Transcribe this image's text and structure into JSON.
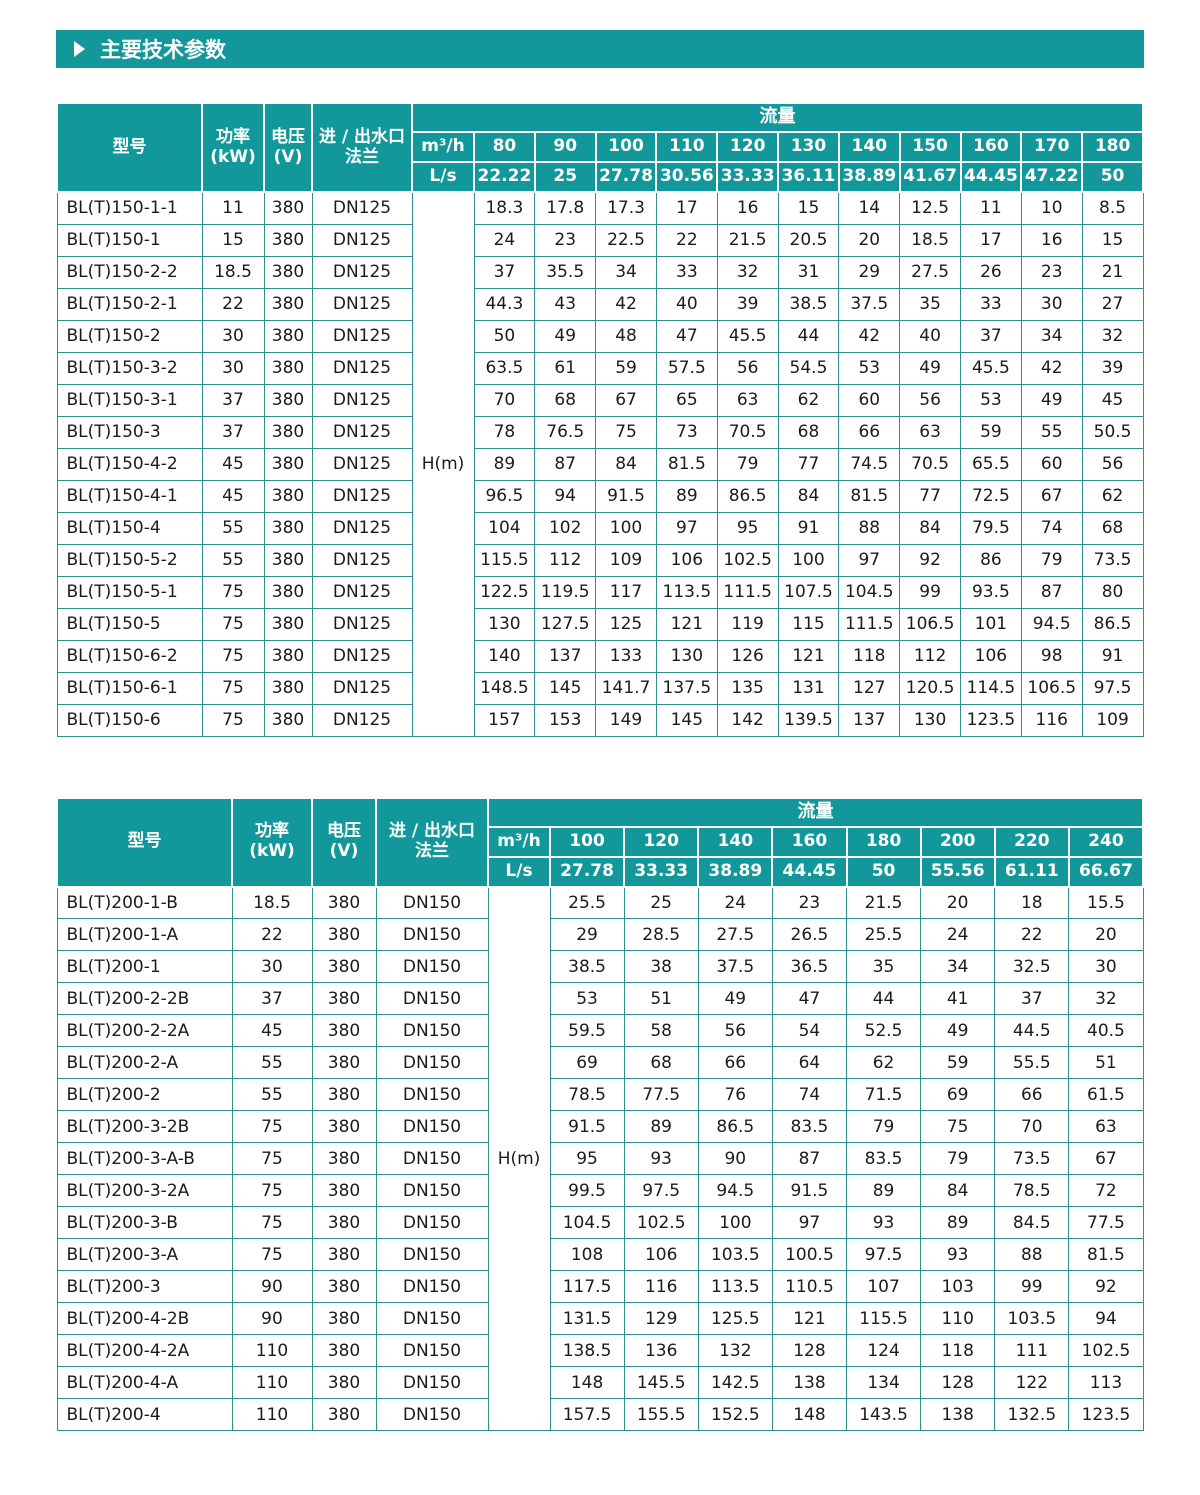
{
  "page": {
    "title": "主要技术参数"
  },
  "table1": {
    "col_model": "型号",
    "col_power": "功率\n(kW)",
    "col_voltage": "电压\n(V)",
    "col_flange": "进 / 出水口\n法兰",
    "flow_label": "流量",
    "unit_m3h": "m³/h",
    "unit_ls": "L/s",
    "head_label": "H(m)",
    "m3h_values": [
      "80",
      "90",
      "100",
      "110",
      "120",
      "130",
      "140",
      "150",
      "160",
      "170",
      "180"
    ],
    "ls_values": [
      "22.22",
      "25",
      "27.78",
      "30.56",
      "33.33",
      "36.11",
      "38.89",
      "41.67",
      "44.45",
      "47.22",
      "50"
    ],
    "rows": [
      {
        "model": "BL(T)150-1-1",
        "power": "11",
        "voltage": "380",
        "flange": "DN125",
        "values": [
          "18.3",
          "17.8",
          "17.3",
          "17",
          "16",
          "15",
          "14",
          "12.5",
          "11",
          "10",
          "8.5"
        ]
      },
      {
        "model": "BL(T)150-1",
        "power": "15",
        "voltage": "380",
        "flange": "DN125",
        "values": [
          "24",
          "23",
          "22.5",
          "22",
          "21.5",
          "20.5",
          "20",
          "18.5",
          "17",
          "16",
          "15"
        ]
      },
      {
        "model": "BL(T)150-2-2",
        "power": "18.5",
        "voltage": "380",
        "flange": "DN125",
        "values": [
          "37",
          "35.5",
          "34",
          "33",
          "32",
          "31",
          "29",
          "27.5",
          "26",
          "23",
          "21"
        ]
      },
      {
        "model": "BL(T)150-2-1",
        "power": "22",
        "voltage": "380",
        "flange": "DN125",
        "values": [
          "44.3",
          "43",
          "42",
          "40",
          "39",
          "38.5",
          "37.5",
          "35",
          "33",
          "30",
          "27"
        ]
      },
      {
        "model": "BL(T)150-2",
        "power": "30",
        "voltage": "380",
        "flange": "DN125",
        "values": [
          "50",
          "49",
          "48",
          "47",
          "45.5",
          "44",
          "42",
          "40",
          "37",
          "34",
          "32"
        ]
      },
      {
        "model": "BL(T)150-3-2",
        "power": "30",
        "voltage": "380",
        "flange": "DN125",
        "values": [
          "63.5",
          "61",
          "59",
          "57.5",
          "56",
          "54.5",
          "53",
          "49",
          "45.5",
          "42",
          "39"
        ]
      },
      {
        "model": "BL(T)150-3-1",
        "power": "37",
        "voltage": "380",
        "flange": "DN125",
        "values": [
          "70",
          "68",
          "67",
          "65",
          "63",
          "62",
          "60",
          "56",
          "53",
          "49",
          "45"
        ]
      },
      {
        "model": "BL(T)150-3",
        "power": "37",
        "voltage": "380",
        "flange": "DN125",
        "values": [
          "78",
          "76.5",
          "75",
          "73",
          "70.5",
          "68",
          "66",
          "63",
          "59",
          "55",
          "50.5"
        ]
      },
      {
        "model": "BL(T)150-4-2",
        "power": "45",
        "voltage": "380",
        "flange": "DN125",
        "values": [
          "89",
          "87",
          "84",
          "81.5",
          "79",
          "77",
          "74.5",
          "70.5",
          "65.5",
          "60",
          "56"
        ]
      },
      {
        "model": "BL(T)150-4-1",
        "power": "45",
        "voltage": "380",
        "flange": "DN125",
        "values": [
          "96.5",
          "94",
          "91.5",
          "89",
          "86.5",
          "84",
          "81.5",
          "77",
          "72.5",
          "67",
          "62"
        ]
      },
      {
        "model": "BL(T)150-4",
        "power": "55",
        "voltage": "380",
        "flange": "DN125",
        "values": [
          "104",
          "102",
          "100",
          "97",
          "95",
          "91",
          "88",
          "84",
          "79.5",
          "74",
          "68"
        ]
      },
      {
        "model": "BL(T)150-5-2",
        "power": "55",
        "voltage": "380",
        "flange": "DN125",
        "values": [
          "115.5",
          "112",
          "109",
          "106",
          "102.5",
          "100",
          "97",
          "92",
          "86",
          "79",
          "73.5"
        ]
      },
      {
        "model": "BL(T)150-5-1",
        "power": "75",
        "voltage": "380",
        "flange": "DN125",
        "values": [
          "122.5",
          "119.5",
          "117",
          "113.5",
          "111.5",
          "107.5",
          "104.5",
          "99",
          "93.5",
          "87",
          "80"
        ]
      },
      {
        "model": "BL(T)150-5",
        "power": "75",
        "voltage": "380",
        "flange": "DN125",
        "values": [
          "130",
          "127.5",
          "125",
          "121",
          "119",
          "115",
          "111.5",
          "106.5",
          "101",
          "94.5",
          "86.5"
        ]
      },
      {
        "model": "BL(T)150-6-2",
        "power": "75",
        "voltage": "380",
        "flange": "DN125",
        "values": [
          "140",
          "137",
          "133",
          "130",
          "126",
          "121",
          "118",
          "112",
          "106",
          "98",
          "91"
        ]
      },
      {
        "model": "BL(T)150-6-1",
        "power": "75",
        "voltage": "380",
        "flange": "DN125",
        "values": [
          "148.5",
          "145",
          "141.7",
          "137.5",
          "135",
          "131",
          "127",
          "120.5",
          "114.5",
          "106.5",
          "97.5"
        ]
      },
      {
        "model": "BL(T)150-6",
        "power": "75",
        "voltage": "380",
        "flange": "DN125",
        "values": [
          "157",
          "153",
          "149",
          "145",
          "142",
          "139.5",
          "137",
          "130",
          "123.5",
          "116",
          "109"
        ]
      }
    ]
  },
  "table2": {
    "col_model": "型号",
    "col_power": "功率\n(kW)",
    "col_voltage": "电压\n(V)",
    "col_flange": "进 / 出水口\n法兰",
    "flow_label": "流量",
    "unit_m3h": "m³/h",
    "unit_ls": "L/s",
    "head_label": "H(m)",
    "m3h_values": [
      "100",
      "120",
      "140",
      "160",
      "180",
      "200",
      "220",
      "240"
    ],
    "ls_values": [
      "27.78",
      "33.33",
      "38.89",
      "44.45",
      "50",
      "55.56",
      "61.11",
      "66.67"
    ],
    "rows": [
      {
        "model": "BL(T)200-1-B",
        "power": "18.5",
        "voltage": "380",
        "flange": "DN150",
        "values": [
          "25.5",
          "25",
          "24",
          "23",
          "21.5",
          "20",
          "18",
          "15.5"
        ]
      },
      {
        "model": "BL(T)200-1-A",
        "power": "22",
        "voltage": "380",
        "flange": "DN150",
        "values": [
          "29",
          "28.5",
          "27.5",
          "26.5",
          "25.5",
          "24",
          "22",
          "20"
        ]
      },
      {
        "model": "BL(T)200-1",
        "power": "30",
        "voltage": "380",
        "flange": "DN150",
        "values": [
          "38.5",
          "38",
          "37.5",
          "36.5",
          "35",
          "34",
          "32.5",
          "30"
        ]
      },
      {
        "model": "BL(T)200-2-2B",
        "power": "37",
        "voltage": "380",
        "flange": "DN150",
        "values": [
          "53",
          "51",
          "49",
          "47",
          "44",
          "41",
          "37",
          "32"
        ]
      },
      {
        "model": "BL(T)200-2-2A",
        "power": "45",
        "voltage": "380",
        "flange": "DN150",
        "values": [
          "59.5",
          "58",
          "56",
          "54",
          "52.5",
          "49",
          "44.5",
          "40.5"
        ]
      },
      {
        "model": "BL(T)200-2-A",
        "power": "55",
        "voltage": "380",
        "flange": "DN150",
        "values": [
          "69",
          "68",
          "66",
          "64",
          "62",
          "59",
          "55.5",
          "51"
        ]
      },
      {
        "model": "BL(T)200-2",
        "power": "55",
        "voltage": "380",
        "flange": "DN150",
        "values": [
          "78.5",
          "77.5",
          "76",
          "74",
          "71.5",
          "69",
          "66",
          "61.5"
        ]
      },
      {
        "model": "BL(T)200-3-2B",
        "power": "75",
        "voltage": "380",
        "flange": "DN150",
        "values": [
          "91.5",
          "89",
          "86.5",
          "83.5",
          "79",
          "75",
          "70",
          "63"
        ]
      },
      {
        "model": "BL(T)200-3-A-B",
        "power": "75",
        "voltage": "380",
        "flange": "DN150",
        "values": [
          "95",
          "93",
          "90",
          "87",
          "83.5",
          "79",
          "73.5",
          "67"
        ]
      },
      {
        "model": "BL(T)200-3-2A",
        "power": "75",
        "voltage": "380",
        "flange": "DN150",
        "values": [
          "99.5",
          "97.5",
          "94.5",
          "91.5",
          "89",
          "84",
          "78.5",
          "72"
        ]
      },
      {
        "model": "BL(T)200-3-B",
        "power": "75",
        "voltage": "380",
        "flange": "DN150",
        "values": [
          "104.5",
          "102.5",
          "100",
          "97",
          "93",
          "89",
          "84.5",
          "77.5"
        ]
      },
      {
        "model": "BL(T)200-3-A",
        "power": "75",
        "voltage": "380",
        "flange": "DN150",
        "values": [
          "108",
          "106",
          "103.5",
          "100.5",
          "97.5",
          "93",
          "88",
          "81.5"
        ]
      },
      {
        "model": "BL(T)200-3",
        "power": "90",
        "voltage": "380",
        "flange": "DN150",
        "values": [
          "117.5",
          "116",
          "113.5",
          "110.5",
          "107",
          "103",
          "99",
          "92"
        ]
      },
      {
        "model": "BL(T)200-4-2B",
        "power": "90",
        "voltage": "380",
        "flange": "DN150",
        "values": [
          "131.5",
          "129",
          "125.5",
          "121",
          "115.5",
          "110",
          "103.5",
          "94"
        ]
      },
      {
        "model": "BL(T)200-4-2A",
        "power": "110",
        "voltage": "380",
        "flange": "DN150",
        "values": [
          "138.5",
          "136",
          "132",
          "128",
          "124",
          "118",
          "111",
          "102.5"
        ]
      },
      {
        "model": "BL(T)200-4-A",
        "power": "110",
        "voltage": "380",
        "flange": "DN150",
        "values": [
          "148",
          "145.5",
          "142.5",
          "138",
          "134",
          "128",
          "122",
          "113"
        ]
      },
      {
        "model": "BL(T)200-4",
        "power": "110",
        "voltage": "380",
        "flange": "DN150",
        "values": [
          "157.5",
          "155.5",
          "152.5",
          "148",
          "143.5",
          "138",
          "132.5",
          "123.5"
        ]
      }
    ]
  }
}
